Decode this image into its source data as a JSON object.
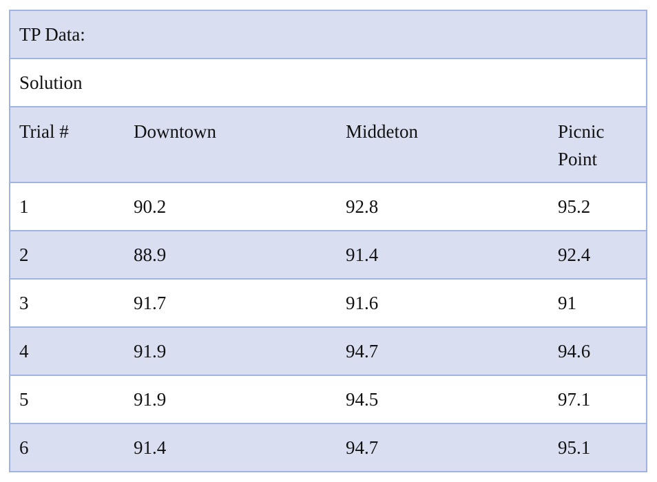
{
  "title": "TP Data:",
  "subtitle": "Solution",
  "headers": [
    "Trial #",
    "Downtown",
    "Middeton",
    "Picnic Point"
  ],
  "rows": [
    [
      "1",
      "90.2",
      "92.8",
      "95.2"
    ],
    [
      "2",
      "88.9",
      "91.4",
      "92.4"
    ],
    [
      "3",
      "91.7",
      "91.6",
      "91"
    ],
    [
      "4",
      "91.9",
      "94.7",
      "94.6"
    ],
    [
      "5",
      "91.9",
      "94.5",
      "97.1"
    ],
    [
      "6",
      "91.4",
      "94.7",
      "95.1"
    ]
  ],
  "colors": {
    "shaded_row": "#d9dff0",
    "border": "#9fb2e3"
  }
}
